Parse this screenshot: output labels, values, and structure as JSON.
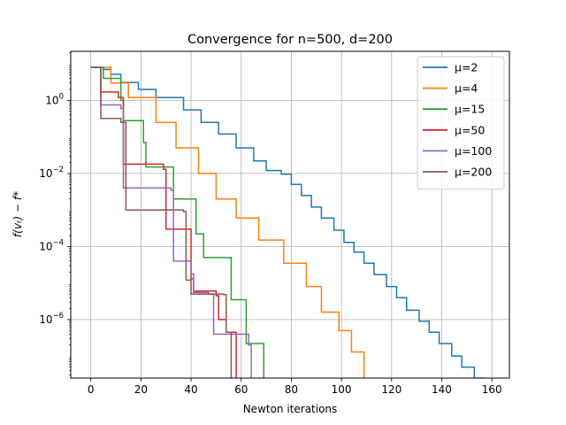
{
  "chart_data": {
    "type": "line",
    "title": "Convergence for n=500, d=200",
    "xlabel": "Newton iterations",
    "ylabel": "f(vₜ) − f*",
    "xlim": [
      -8,
      167
    ],
    "ylim": [
      2.5e-08,
      22
    ],
    "yscale": "log",
    "grid": true,
    "legend_position": "top-right",
    "x_ticks": [
      0,
      20,
      40,
      60,
      80,
      100,
      120,
      140,
      160
    ],
    "x_tick_labels": [
      "0",
      "20",
      "40",
      "60",
      "80",
      "100",
      "120",
      "140",
      "160"
    ],
    "y_ticks": [
      1e-06,
      0.0001,
      0.01,
      1
    ],
    "y_tick_labels": [
      {
        "base": "10",
        "exp": "−6"
      },
      {
        "base": "10",
        "exp": "−4"
      },
      {
        "base": "10",
        "exp": "−2"
      },
      {
        "base": "10",
        "exp": "0"
      }
    ],
    "series": [
      {
        "name": "μ=2",
        "color": "#1f77b4",
        "points": [
          [
            0,
            8
          ],
          [
            3,
            8
          ],
          [
            5,
            7
          ],
          [
            8,
            5.2
          ],
          [
            12,
            3.1
          ],
          [
            19,
            2
          ],
          [
            26,
            1.2
          ],
          [
            37,
            0.55
          ],
          [
            44,
            0.25
          ],
          [
            51,
            0.12
          ],
          [
            58,
            0.05
          ],
          [
            65,
            0.022
          ],
          [
            70,
            0.012
          ],
          [
            76,
            0.0095
          ],
          [
            80,
            0.005
          ],
          [
            84,
            0.0025
          ],
          [
            88,
            0.0012
          ],
          [
            92,
            0.0006
          ],
          [
            97,
            0.00028
          ],
          [
            101,
            0.00013
          ],
          [
            105,
            7e-05
          ],
          [
            109,
            3.5e-05
          ],
          [
            113,
            1.7e-05
          ],
          [
            118,
            8e-06
          ],
          [
            122,
            4e-06
          ],
          [
            126,
            1.8e-06
          ],
          [
            131,
            9e-07
          ],
          [
            135,
            4.5e-07
          ],
          [
            139,
            2.2e-07
          ],
          [
            144,
            1e-07
          ],
          [
            148,
            5e-08
          ],
          [
            153,
            2.5e-08
          ],
          [
            157,
            1e-08
          ]
        ]
      },
      {
        "name": "μ=4",
        "color": "#ff7f0e",
        "points": [
          [
            0,
            8
          ],
          [
            3,
            8
          ],
          [
            8,
            3
          ],
          [
            15,
            1.2
          ],
          [
            26,
            0.25
          ],
          [
            34,
            0.05
          ],
          [
            43,
            0.01
          ],
          [
            50,
            0.002
          ],
          [
            58,
            0.0006
          ],
          [
            67,
            0.00015
          ],
          [
            77,
            3.5e-05
          ],
          [
            86,
            8e-06
          ],
          [
            92,
            1.6e-06
          ],
          [
            99,
            5e-07
          ],
          [
            104,
            1.3e-07
          ],
          [
            109,
            1e-08
          ]
        ]
      },
      {
        "name": "μ=15",
        "color": "#2ca02c",
        "points": [
          [
            0,
            8
          ],
          [
            3,
            8
          ],
          [
            5,
            4
          ],
          [
            12,
            1
          ],
          [
            13,
            0.28
          ],
          [
            21,
            0.07
          ],
          [
            22,
            0.015
          ],
          [
            33,
            0.002
          ],
          [
            42,
            0.00022
          ],
          [
            45,
            5e-05
          ],
          [
            56,
            3.5e-06
          ],
          [
            62,
            2.2e-07
          ],
          [
            69,
            1e-08
          ]
        ]
      },
      {
        "name": "μ=50",
        "color": "#d62728",
        "points": [
          [
            0,
            8
          ],
          [
            3,
            8
          ],
          [
            4,
            1.7
          ],
          [
            11,
            1.2
          ],
          [
            13,
            0.018
          ],
          [
            29,
            0.013
          ],
          [
            30,
            0.0003
          ],
          [
            40,
            1.3e-05
          ],
          [
            41,
            6e-06
          ],
          [
            50,
            4.5e-06
          ],
          [
            51,
            1e-06
          ],
          [
            54,
            4.5e-07
          ],
          [
            58,
            1e-08
          ]
        ]
      },
      {
        "name": "μ=100",
        "color": "#9467bd",
        "points": [
          [
            0,
            8
          ],
          [
            3,
            8
          ],
          [
            4,
            0.75
          ],
          [
            12,
            0.6
          ],
          [
            13,
            0.004
          ],
          [
            32,
            0.0035
          ],
          [
            33,
            4e-05
          ],
          [
            40,
            1.8e-05
          ],
          [
            41,
            5.5e-06
          ],
          [
            47,
            5e-06
          ],
          [
            49,
            4e-07
          ],
          [
            63,
            2e-07
          ],
          [
            64,
            1e-08
          ]
        ]
      },
      {
        "name": "μ=200",
        "color": "#8c564b",
        "points": [
          [
            0,
            8
          ],
          [
            3,
            8
          ],
          [
            4,
            0.32
          ],
          [
            12,
            0.25
          ],
          [
            14,
            0.001
          ],
          [
            37,
            0.0009
          ],
          [
            38,
            1.2e-05
          ],
          [
            40,
            5e-06
          ],
          [
            53,
            4.8e-06
          ],
          [
            54,
            4.5e-07
          ],
          [
            56,
            1e-08
          ]
        ]
      }
    ]
  }
}
